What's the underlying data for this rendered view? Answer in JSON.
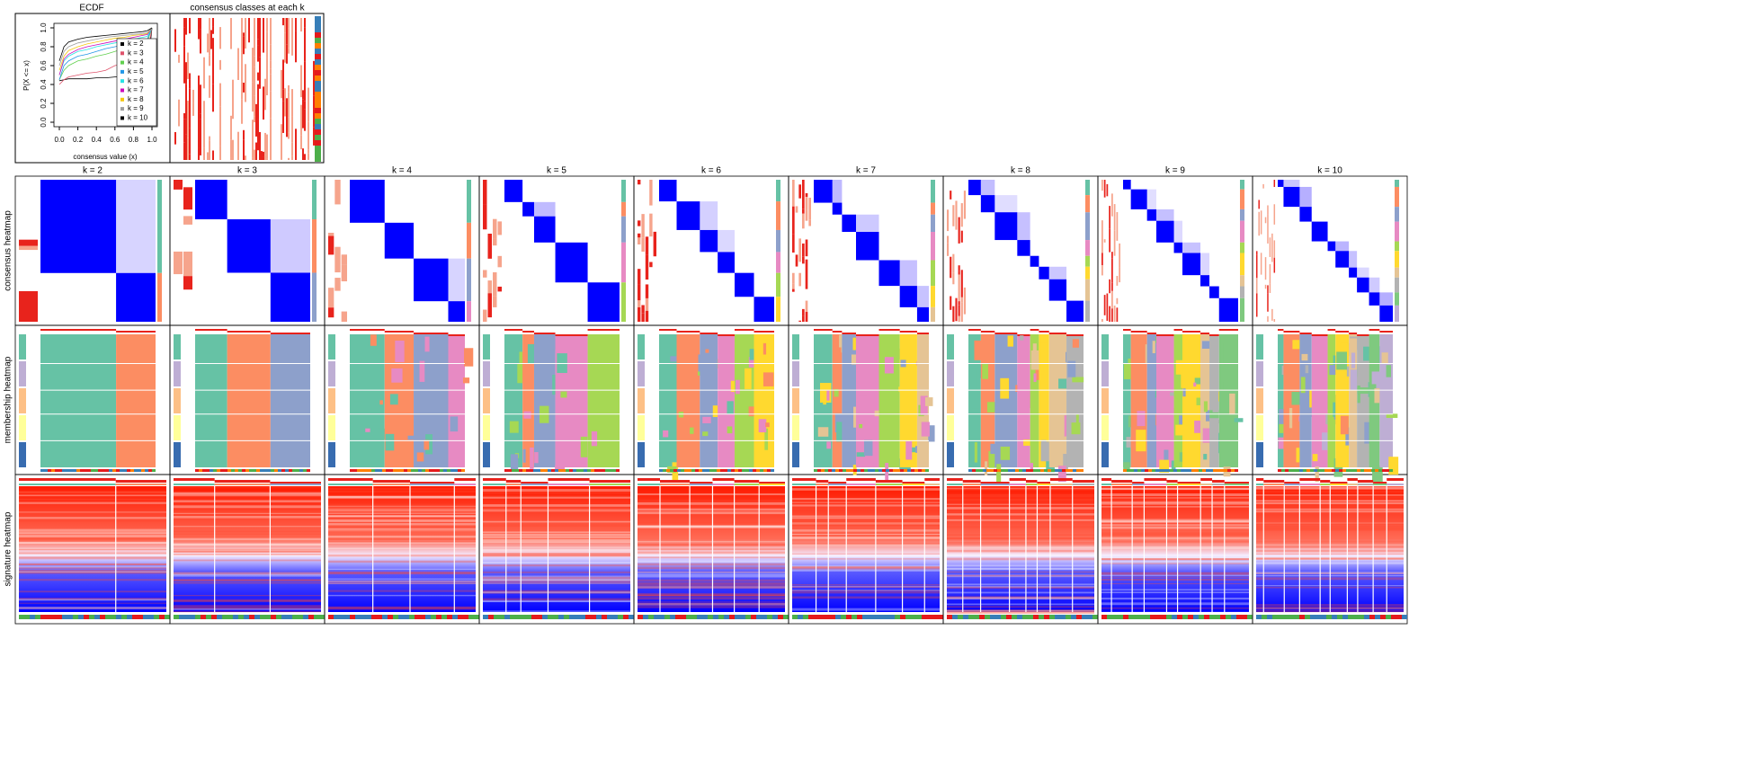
{
  "chart_data": {
    "type": "line",
    "title": "ECDF",
    "x_label": "consensus value (x)",
    "y_label": "P(X <= x)",
    "xlim": [
      0,
      1
    ],
    "ylim": [
      0,
      1
    ],
    "xticks": [
      {
        "value": 0,
        "label": "0.0"
      },
      0.2,
      0.4,
      0.6,
      0.8,
      {
        "value": 1,
        "label": "1.0"
      }
    ],
    "yticks": [
      {
        "value": 0,
        "label": "0.0"
      },
      0.2,
      0.4,
      0.6,
      0.8,
      {
        "value": 1,
        "label": "1.0"
      }
    ],
    "x": [
      0,
      0.05,
      0.1,
      0.2,
      0.3,
      0.4,
      0.5,
      0.6,
      0.7,
      0.8,
      0.9,
      0.95,
      1
    ],
    "legend": "right",
    "series": [
      {
        "name": "k = 2",
        "color": "#000000",
        "values": [
          0.44,
          0.45,
          0.46,
          0.46,
          0.46,
          0.47,
          0.47,
          0.48,
          0.48,
          0.49,
          0.5,
          0.52,
          1
        ]
      },
      {
        "name": "k = 3",
        "color": "#df536b",
        "values": [
          0.4,
          0.45,
          0.48,
          0.5,
          0.52,
          0.53,
          0.55,
          0.6,
          0.62,
          0.65,
          0.68,
          0.72,
          1
        ]
      },
      {
        "name": "k = 4",
        "color": "#61d04f",
        "values": [
          0.45,
          0.55,
          0.6,
          0.65,
          0.67,
          0.7,
          0.72,
          0.75,
          0.78,
          0.8,
          0.82,
          0.85,
          1
        ]
      },
      {
        "name": "k = 5",
        "color": "#2297e6",
        "values": [
          0.45,
          0.6,
          0.65,
          0.7,
          0.72,
          0.75,
          0.78,
          0.8,
          0.82,
          0.85,
          0.87,
          0.88,
          1
        ]
      },
      {
        "name": "k = 6",
        "color": "#28e2e5",
        "values": [
          0.5,
          0.65,
          0.7,
          0.75,
          0.77,
          0.8,
          0.82,
          0.84,
          0.86,
          0.88,
          0.9,
          0.91,
          1
        ]
      },
      {
        "name": "k = 7",
        "color": "#cd0bbc",
        "values": [
          0.5,
          0.67,
          0.72,
          0.77,
          0.8,
          0.82,
          0.84,
          0.86,
          0.88,
          0.9,
          0.92,
          0.93,
          1
        ]
      },
      {
        "name": "k = 8",
        "color": "#f5c710",
        "values": [
          0.55,
          0.7,
          0.76,
          0.8,
          0.83,
          0.85,
          0.87,
          0.89,
          0.9,
          0.92,
          0.93,
          0.94,
          1
        ]
      },
      {
        "name": "k = 9",
        "color": "#9e9e9e",
        "values": [
          0.6,
          0.75,
          0.8,
          0.84,
          0.86,
          0.88,
          0.9,
          0.91,
          0.92,
          0.93,
          0.94,
          0.95,
          1
        ]
      },
      {
        "name": "k = 10",
        "color": "#000000",
        "values": [
          0.65,
          0.8,
          0.85,
          0.88,
          0.9,
          0.91,
          0.92,
          0.93,
          0.94,
          0.95,
          0.96,
          0.97,
          1
        ]
      }
    ]
  },
  "panels": {
    "classes_title": "consensus classes at each k",
    "columns": [
      "k = 2",
      "k = 3",
      "k = 4",
      "k = 5",
      "k = 6",
      "k = 7",
      "k = 8",
      "k = 9",
      "k = 10"
    ],
    "rows": [
      "consensus heatmap",
      "membership heatmap",
      "signature heatmap"
    ]
  }
}
